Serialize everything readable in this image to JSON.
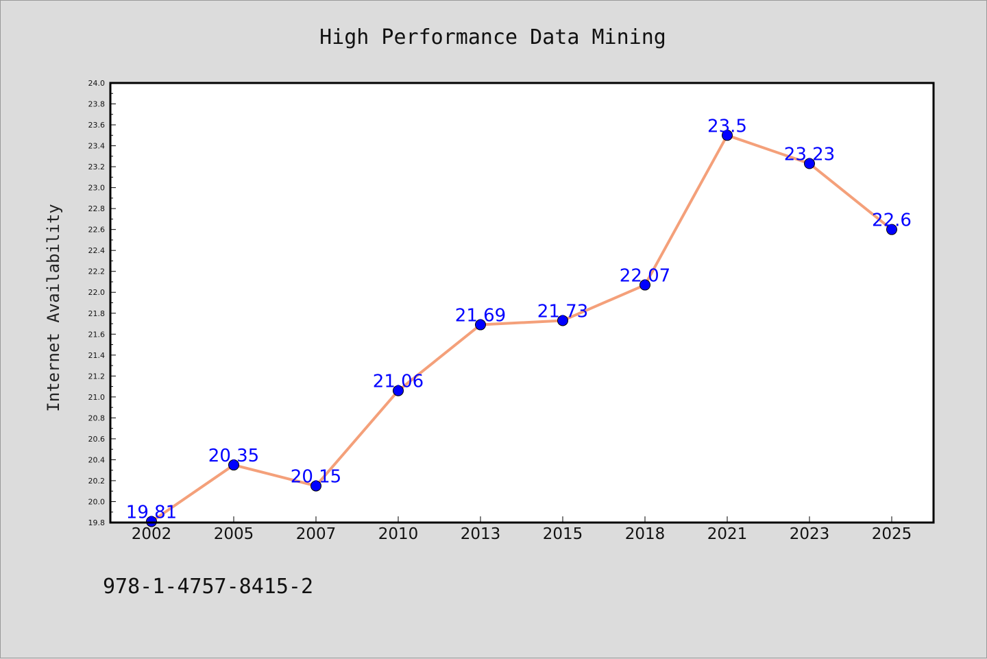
{
  "chart_data": {
    "type": "line",
    "title": "High Performance Data Mining",
    "xlabel": "",
    "ylabel": "Internet Availability",
    "categories": [
      "2002",
      "2005",
      "2007",
      "2010",
      "2013",
      "2015",
      "2018",
      "2021",
      "2023",
      "2025"
    ],
    "series": [
      {
        "values": [
          19.81,
          20.35,
          20.15,
          21.06,
          21.69,
          21.73,
          22.07,
          23.5,
          23.23,
          22.6
        ],
        "labels": [
          "19.81",
          "20.35",
          "20.15",
          "21.06",
          "21.69",
          "21.73",
          "22.07",
          "23.5",
          "23.23",
          "22.6"
        ],
        "line_color": "#f4a07a",
        "marker_color": "#0000ff"
      }
    ],
    "ylim": [
      19.8,
      24.0
    ],
    "yticks": [
      "19.8",
      "20.0",
      "20.2",
      "20.4",
      "20.6",
      "20.8",
      "21.0",
      "21.2",
      "21.4",
      "21.6",
      "21.8",
      "22.0",
      "22.2",
      "22.4",
      "22.6",
      "22.8",
      "23.0",
      "23.2",
      "23.4",
      "23.6",
      "23.8",
      "24.0"
    ],
    "grid": false,
    "legend": "none"
  },
  "footer_text": "978-1-4757-8415-2",
  "colors": {
    "background": "#dcdcdc",
    "plot_area": "#ffffff",
    "line": "#f4a07a",
    "marker": "#0000ff",
    "data_label": "#0000ff"
  }
}
